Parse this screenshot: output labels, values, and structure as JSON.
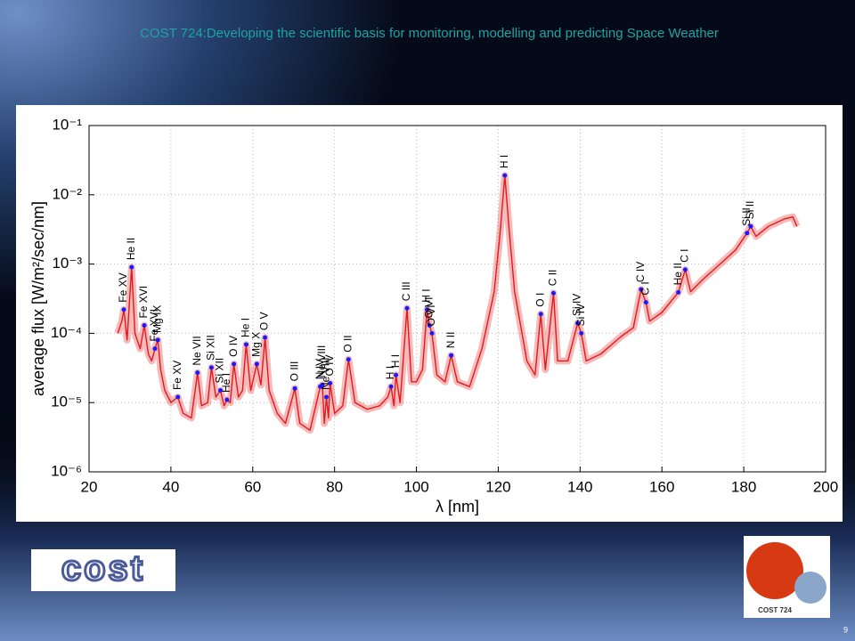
{
  "header": {
    "title": "COST 724:Developing the scientific basis for monitoring, modelling and predicting Space Weather",
    "page_number": "9",
    "cost_logo": "cost",
    "cost724_badge": "COST 724"
  },
  "chart_data": {
    "type": "line",
    "xlabel": "λ [nm]",
    "ylabel": "average flux [W/m²/sec/nm]",
    "xlim": [
      20,
      200
    ],
    "xticks": [
      20,
      40,
      60,
      80,
      100,
      120,
      140,
      160,
      180,
      200
    ],
    "ylim": [
      1e-06,
      0.1
    ],
    "log_y": true,
    "grid": true,
    "yticks": [
      {
        "value": 1e-06,
        "label": "10⁻⁶"
      },
      {
        "value": 1e-05,
        "label": "10⁻⁵"
      },
      {
        "value": 0.0001,
        "label": "10⁻⁴"
      },
      {
        "value": 0.001,
        "label": "10⁻³"
      },
      {
        "value": 0.01,
        "label": "10⁻²"
      },
      {
        "value": 0.1,
        "label": "10⁻¹"
      }
    ],
    "series": [
      {
        "color": "#e31a1c",
        "x": [
          27,
          28,
          28.5,
          29.3,
          30.4,
          31.2,
          32.5,
          33.5,
          34.5,
          35.3,
          36.1,
          36.8,
          37.5,
          38.5,
          40,
          41.7,
          43,
          45,
          46.5,
          47.5,
          49,
          49.9,
          51,
          52.1,
          53,
          53.7,
          54.5,
          55.4,
          56.5,
          57.5,
          58.4,
          59.5,
          61,
          62,
          63,
          64,
          66,
          68,
          70.3,
          71.5,
          74,
          76.5,
          77,
          77.5,
          78,
          78.5,
          78.9,
          80,
          82,
          83.4,
          85,
          88,
          91,
          93,
          93.8,
          94.5,
          95,
          96,
          97.7,
          98.8,
          100,
          101.5,
          102.6,
          103.2,
          103.8,
          105,
          107,
          108.5,
          110,
          113,
          116,
          119,
          120.5,
          121.6,
          122.7,
          124,
          127,
          129,
          130.4,
          131.5,
          133.5,
          134.5,
          137,
          139.4,
          140.3,
          141.5,
          145,
          150,
          153,
          154.9,
          156.1,
          157,
          160,
          164,
          165.7,
          167,
          170,
          175,
          178,
          180.8,
          181.7,
          183,
          186,
          190,
          192,
          193
        ],
        "values": [
          0.0001,
          0.00015,
          0.00022,
          8e-05,
          0.0009,
          0.0001,
          6e-05,
          0.00013,
          5e-05,
          4e-05,
          6e-05,
          8e-05,
          3e-05,
          1.5e-05,
          1e-05,
          1.2e-05,
          7e-06,
          6e-06,
          2.7e-05,
          9e-06,
          1e-05,
          3.2e-05,
          1.2e-05,
          1.5e-05,
          9e-06,
          1.1e-05,
          1e-05,
          3.6e-05,
          1.2e-05,
          1.5e-05,
          6.9e-05,
          1.5e-05,
          3.6e-05,
          1.8e-05,
          8.7e-05,
          1.5e-05,
          7e-06,
          5e-06,
          1.6e-05,
          5e-06,
          4e-06,
          1.7e-05,
          1.8e-05,
          5e-06,
          1.2e-05,
          6e-06,
          1.9e-05,
          7e-06,
          9e-06,
          4.2e-05,
          1e-05,
          8e-06,
          9e-06,
          1.2e-05,
          1.7e-05,
          9e-06,
          2.5e-05,
          1e-05,
          0.00023,
          2e-05,
          2e-05,
          3e-05,
          0.00022,
          0.00013,
          0.0001,
          2.5e-05,
          2e-05,
          4.8e-05,
          2e-05,
          1.7e-05,
          6e-05,
          0.0004,
          0.003,
          0.019,
          0.003,
          0.0004,
          4e-05,
          2.5e-05,
          0.00019,
          3e-05,
          0.00038,
          4e-05,
          4e-05,
          0.00014,
          0.0001,
          4e-05,
          5e-05,
          9e-05,
          0.00012,
          0.00043,
          0.00028,
          0.00015,
          0.0002,
          0.00039,
          0.00083,
          0.0004,
          0.0006,
          0.0011,
          0.0016,
          0.0028,
          0.0035,
          0.0025,
          0.0035,
          0.0045,
          0.0048,
          0.0035
        ]
      }
    ],
    "lines": {
      "color": "#1a1aff",
      "labels": [
        "Fe XV",
        "He II",
        "Fe XVI",
        "Fe XVI",
        "Mg IX",
        "Fe XV",
        "Ne VII",
        "Si XII",
        "Si XII",
        "He I",
        "O IV",
        "He I",
        "Mg X",
        "O V",
        "O III",
        "N IV",
        "Ne VIII",
        "Ne VIII",
        "O IV",
        "O II",
        "H I",
        "H I",
        "C III",
        "H I",
        "O VI",
        "O VI",
        "N II",
        "H I",
        "O I",
        "C II",
        "Si IV",
        "Si IV",
        "C IV",
        "C I",
        "He II",
        "C I",
        "Si II",
        "Si II"
      ],
      "x": [
        28.5,
        30.4,
        33.5,
        36.1,
        36.8,
        41.7,
        46.5,
        49.9,
        52.1,
        53.7,
        55.4,
        58.4,
        61,
        63,
        70.3,
        76.5,
        77,
        78,
        78.9,
        83.4,
        93.8,
        95,
        97.7,
        102.6,
        103.2,
        103.8,
        108.5,
        121.6,
        130.4,
        133.5,
        139.4,
        140.3,
        154.9,
        156.1,
        164,
        165.7,
        180.8,
        181.7
      ],
      "values": [
        0.00022,
        0.0009,
        0.00013,
        6e-05,
        8e-05,
        1.2e-05,
        2.7e-05,
        3.2e-05,
        1.5e-05,
        1.1e-05,
        3.6e-05,
        6.9e-05,
        3.6e-05,
        8.7e-05,
        1.6e-05,
        1.7e-05,
        1.8e-05,
        1.2e-05,
        1.9e-05,
        4.2e-05,
        1.7e-05,
        2.5e-05,
        0.00023,
        0.00022,
        0.00013,
        0.0001,
        4.8e-05,
        0.019,
        0.00019,
        0.00038,
        0.00014,
        0.0001,
        0.00043,
        0.00028,
        0.00039,
        0.00083,
        0.0028,
        0.0035
      ]
    }
  }
}
